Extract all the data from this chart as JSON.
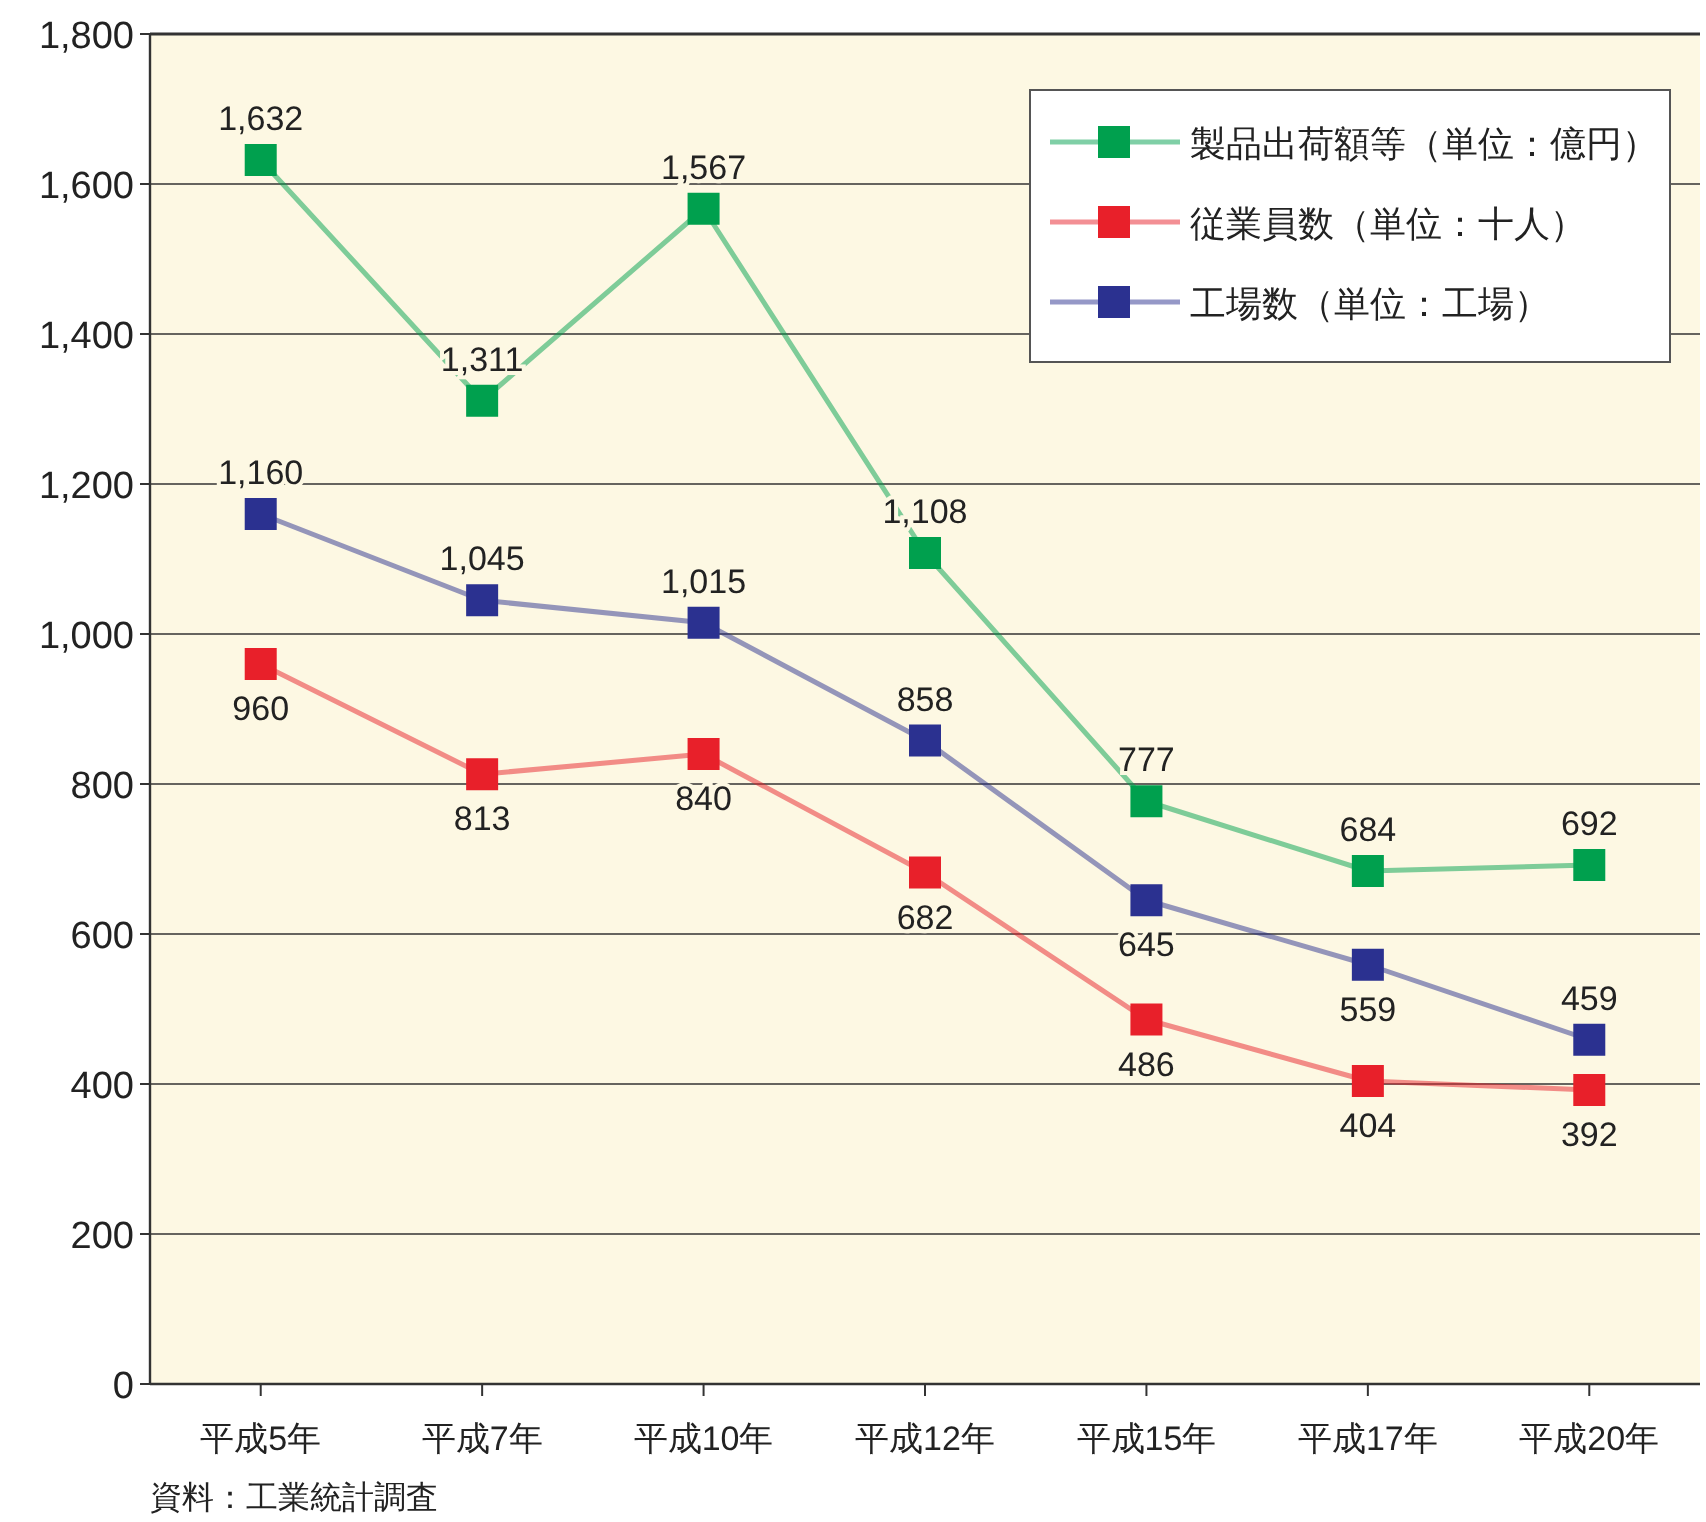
{
  "chart_data": {
    "type": "line",
    "categories": [
      "平成5年",
      "平成7年",
      "平成10年",
      "平成12年",
      "平成15年",
      "平成17年",
      "平成20年"
    ],
    "series": [
      {
        "name": "製品出荷額等（単位：億円）",
        "color": "#00a04e",
        "values": [
          1632,
          1311,
          1567,
          1108,
          777,
          684,
          692
        ],
        "value_labels": [
          "1,632",
          "1,311",
          "1,567",
          "1,108",
          "777",
          "684",
          "692"
        ]
      },
      {
        "name": "従業員数（単位：十人）",
        "color": "#e8202a",
        "values": [
          960,
          813,
          840,
          682,
          486,
          404,
          392
        ],
        "value_labels": [
          "960",
          "813",
          "840",
          "682",
          "486",
          "404",
          "392"
        ]
      },
      {
        "name": "工場数（単位：工場）",
        "color": "#2b3190",
        "values": [
          1160,
          1045,
          1015,
          858,
          645,
          559,
          459
        ],
        "value_labels": [
          "1,160",
          "1,045",
          "1,015",
          "858",
          "645",
          "559",
          "459"
        ]
      }
    ],
    "ylim": [
      0,
      1800
    ],
    "yticks": [
      {
        "value": 0,
        "label": "0"
      },
      {
        "value": 200,
        "label": "200"
      },
      {
        "value": 400,
        "label": "400"
      },
      {
        "value": 600,
        "label": "600"
      },
      {
        "value": 800,
        "label": "800"
      },
      {
        "value": 1000,
        "label": "1,000"
      },
      {
        "value": 1200,
        "label": "1,200"
      },
      {
        "value": 1400,
        "label": "1,400"
      },
      {
        "value": 1600,
        "label": "1,600"
      },
      {
        "value": 1800,
        "label": "1,800"
      }
    ],
    "grid": "y",
    "legend": "top right",
    "marker": "square",
    "line_style": "solid",
    "annotations": [
      "資料：工業統計調査"
    ]
  }
}
